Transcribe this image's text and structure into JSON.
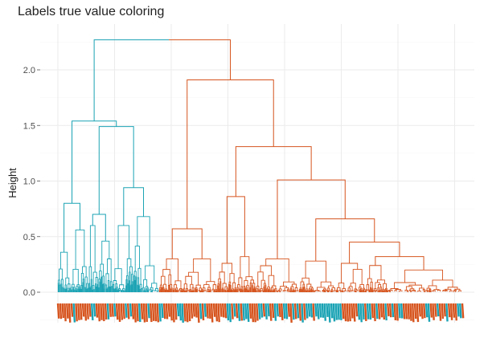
{
  "chart_data": {
    "type": "dendrogram",
    "title": "Labels true value coloring",
    "xlabel": "",
    "ylabel": "Height",
    "ylim": [
      -0.25,
      2.35
    ],
    "yticks": [
      0.0,
      0.5,
      1.0,
      1.5,
      2.0
    ],
    "ytick_labels": [
      "0.0",
      "0.5",
      "1.0",
      "1.5",
      "2.0"
    ],
    "grid": true,
    "colors": {
      "cluster1": "#1ba3b4",
      "cluster2": "#d6541e"
    },
    "merges": [
      {
        "name": "root",
        "height": 2.27,
        "left": "c1",
        "right": "c2"
      },
      {
        "name": "c1",
        "height": 1.54,
        "left": "c1a",
        "right": "c1b"
      },
      {
        "name": "c1a",
        "height": 0.8,
        "left": "c1a-l",
        "right": "c1a-r"
      },
      {
        "name": "c1b",
        "height": 1.49,
        "left": "c1b-l",
        "right": "c1b-r"
      },
      {
        "name": "c1b-l",
        "height": 0.7,
        "left": "c1b-ll",
        "right": "c1b-lr"
      },
      {
        "name": "c1b-r",
        "height": 0.94,
        "left": "c1b-rl",
        "right": "c1b-rr"
      },
      {
        "name": "c2",
        "height": 1.91,
        "left": "c2a",
        "right": "c2b"
      },
      {
        "name": "c2a",
        "height": 0.57,
        "left": "c2a-l",
        "right": "c2a-r"
      },
      {
        "name": "c2b",
        "height": 1.31,
        "left": "c2b-l",
        "right": "c2b-r"
      },
      {
        "name": "c2b-l",
        "height": 0.86,
        "left": "c2b-ll",
        "right": "c2b-lr"
      },
      {
        "name": "c2b-r",
        "height": 1.01,
        "left": "c2b-rl",
        "right": "c2b-rr"
      },
      {
        "name": "c2b-rr",
        "height": 0.66,
        "left": "c2b-rrl",
        "right": "c2b-rrr"
      },
      {
        "name": "c2b-rrr",
        "height": 0.45,
        "left": "c2b-rrrl",
        "right": "c2b-rrrr"
      },
      {
        "name": "c2b-rrrr",
        "height": 0.32,
        "left": "c2b-rrrrl",
        "right": "c2b-rrrrr"
      }
    ],
    "leaf_count": 180
  }
}
